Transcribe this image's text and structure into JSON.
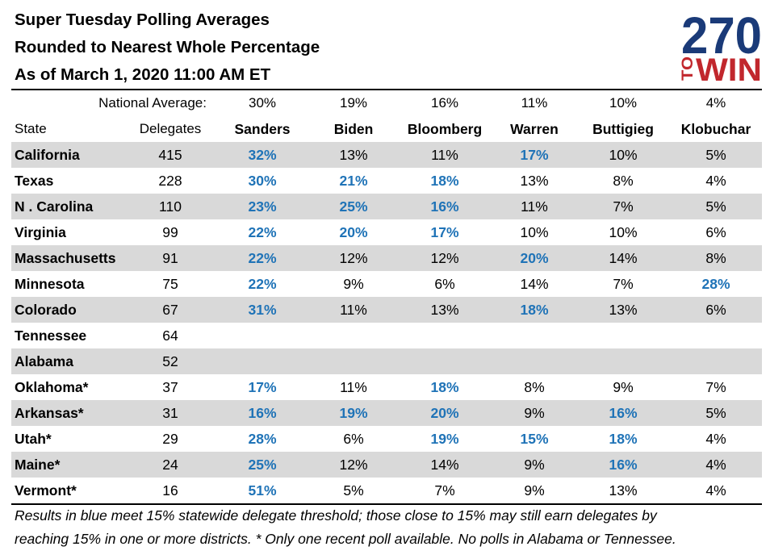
{
  "title": {
    "line1": "Super Tuesday Polling Averages",
    "line2": "Rounded to Nearest Whole Percentage",
    "line3": "As of March 1, 2020 11:00 AM ET"
  },
  "logo": {
    "number": "270",
    "to": "TO",
    "win": "WIN",
    "blue": "#1a3a78",
    "red": "#c1272d"
  },
  "national": {
    "label": "National Average:",
    "values": [
      "30%",
      "19%",
      "16%",
      "11%",
      "10%",
      "4%"
    ]
  },
  "headers": {
    "state": "State",
    "delegates": "Delegates",
    "candidates": [
      "Sanders",
      "Biden",
      "Bloomberg",
      "Warren",
      "Buttigieg",
      "Klobuchar"
    ]
  },
  "colors": {
    "threshold_blue": "#1f73b7",
    "row_shade": "#d9d9d9"
  },
  "rows": [
    {
      "state": "California",
      "delegates": "415",
      "values": [
        "32%",
        "13%",
        "11%",
        "17%",
        "10%",
        "5%"
      ],
      "meets": [
        true,
        false,
        false,
        true,
        false,
        false
      ],
      "shaded": true
    },
    {
      "state": "Texas",
      "delegates": "228",
      "values": [
        "30%",
        "21%",
        "18%",
        "13%",
        "8%",
        "4%"
      ],
      "meets": [
        true,
        true,
        true,
        false,
        false,
        false
      ],
      "shaded": false
    },
    {
      "state": "N . Carolina",
      "delegates": "110",
      "values": [
        "23%",
        "25%",
        "16%",
        "11%",
        "7%",
        "5%"
      ],
      "meets": [
        true,
        true,
        true,
        false,
        false,
        false
      ],
      "shaded": true
    },
    {
      "state": "Virginia",
      "delegates": "99",
      "values": [
        "22%",
        "20%",
        "17%",
        "10%",
        "10%",
        "6%"
      ],
      "meets": [
        true,
        true,
        true,
        false,
        false,
        false
      ],
      "shaded": false
    },
    {
      "state": "Massachusetts",
      "delegates": "91",
      "values": [
        "22%",
        "12%",
        "12%",
        "20%",
        "14%",
        "8%"
      ],
      "meets": [
        true,
        false,
        false,
        true,
        false,
        false
      ],
      "shaded": true
    },
    {
      "state": "Minnesota",
      "delegates": "75",
      "values": [
        "22%",
        "9%",
        "6%",
        "14%",
        "7%",
        "28%"
      ],
      "meets": [
        true,
        false,
        false,
        false,
        false,
        true
      ],
      "shaded": false
    },
    {
      "state": "Colorado",
      "delegates": "67",
      "values": [
        "31%",
        "11%",
        "13%",
        "18%",
        "13%",
        "6%"
      ],
      "meets": [
        true,
        false,
        false,
        true,
        false,
        false
      ],
      "shaded": true
    },
    {
      "state": "Tennessee",
      "delegates": "64",
      "values": [
        "",
        "",
        "",
        "",
        "",
        ""
      ],
      "meets": [
        false,
        false,
        false,
        false,
        false,
        false
      ],
      "shaded": false
    },
    {
      "state": "Alabama",
      "delegates": "52",
      "values": [
        "",
        "",
        "",
        "",
        "",
        ""
      ],
      "meets": [
        false,
        false,
        false,
        false,
        false,
        false
      ],
      "shaded": true
    },
    {
      "state": "Oklahoma*",
      "delegates": "37",
      "values": [
        "17%",
        "11%",
        "18%",
        "8%",
        "9%",
        "7%"
      ],
      "meets": [
        true,
        false,
        true,
        false,
        false,
        false
      ],
      "shaded": false
    },
    {
      "state": "Arkansas*",
      "delegates": "31",
      "values": [
        "16%",
        "19%",
        "20%",
        "9%",
        "16%",
        "5%"
      ],
      "meets": [
        true,
        true,
        true,
        false,
        true,
        false
      ],
      "shaded": true
    },
    {
      "state": "Utah*",
      "delegates": "29",
      "values": [
        "28%",
        "6%",
        "19%",
        "15%",
        "18%",
        "4%"
      ],
      "meets": [
        true,
        false,
        true,
        true,
        true,
        false
      ],
      "shaded": false
    },
    {
      "state": "Maine*",
      "delegates": "24",
      "values": [
        "25%",
        "12%",
        "14%",
        "9%",
        "16%",
        "4%"
      ],
      "meets": [
        true,
        false,
        false,
        false,
        true,
        false
      ],
      "shaded": true
    },
    {
      "state": "Vermont*",
      "delegates": "16",
      "values": [
        "51%",
        "5%",
        "7%",
        "9%",
        "13%",
        "4%"
      ],
      "meets": [
        true,
        false,
        false,
        false,
        false,
        false
      ],
      "shaded": false
    }
  ],
  "footnote": {
    "line1": "Results in blue meet 15% statewide delegate threshold; those close to 15% may still earn delegates by",
    "line2": "reaching 15% in one or more districts.  * Only one recent poll available. No polls in Alabama or Tennessee."
  }
}
